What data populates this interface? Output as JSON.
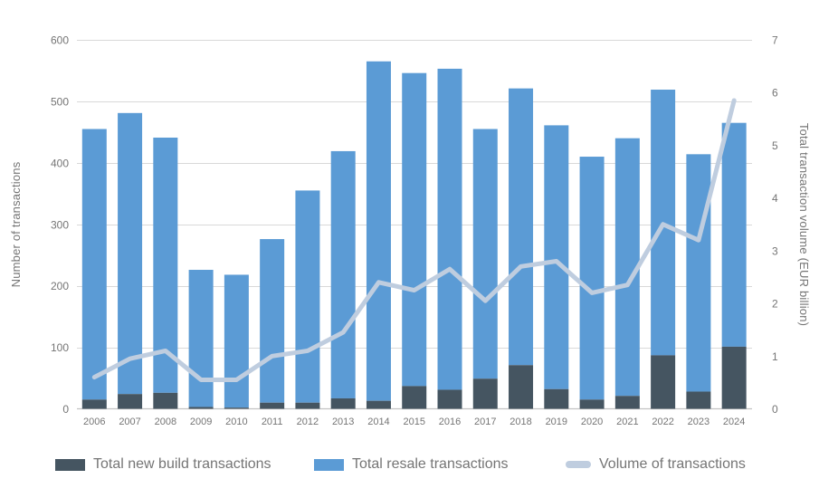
{
  "chart_data": {
    "type": "bar",
    "subtype": "stacked-bars-with-line",
    "categories": [
      "2006",
      "2007",
      "2008",
      "2009",
      "2010",
      "2011",
      "2012",
      "2013",
      "2014",
      "2015",
      "2016",
      "2017",
      "2018",
      "2019",
      "2020",
      "2021",
      "2022",
      "2023",
      "2024"
    ],
    "series": [
      {
        "name": "Total new build transactions",
        "type": "bar",
        "axis": "left",
        "color": "#455561",
        "values": [
          15,
          24,
          26,
          3,
          2,
          10,
          10,
          17,
          13,
          37,
          31,
          49,
          71,
          32,
          15,
          21,
          87,
          28,
          101
        ]
      },
      {
        "name": "Total resale transactions",
        "type": "bar",
        "axis": "left",
        "color": "#5b9bd5",
        "values": [
          440,
          457,
          415,
          223,
          216,
          266,
          345,
          402,
          552,
          509,
          522,
          406,
          450,
          429,
          395,
          419,
          432,
          386,
          364
        ]
      },
      {
        "name": "Volume of transactions",
        "type": "line",
        "axis": "right",
        "color": "#bfcddf",
        "values": [
          0.6,
          0.95,
          1.1,
          0.55,
          0.55,
          1.0,
          1.1,
          1.45,
          2.4,
          2.25,
          2.65,
          2.05,
          2.7,
          2.8,
          2.2,
          2.35,
          3.5,
          3.2,
          5.85
        ]
      }
    ],
    "stacked_totals": [
      455,
      481,
      441,
      226,
      218,
      276,
      355,
      419,
      565,
      546,
      553,
      455,
      521,
      461,
      410,
      440,
      519,
      414,
      465
    ],
    "title": "",
    "xlabel": "",
    "ylabel_left": "Number of transactions",
    "ylabel_right": "Total transaction volume (EUR billion)",
    "y_left": {
      "min": 0,
      "max": 600,
      "step": 100
    },
    "y_right": {
      "min": 0,
      "max": 7,
      "step": 1
    },
    "grid": "horizontal",
    "legend_position": "bottom",
    "colors": {
      "grid": "#d9d9d9",
      "axis_baseline": "#c2c2c2",
      "text": "#757575",
      "background": "#ffffff"
    }
  }
}
